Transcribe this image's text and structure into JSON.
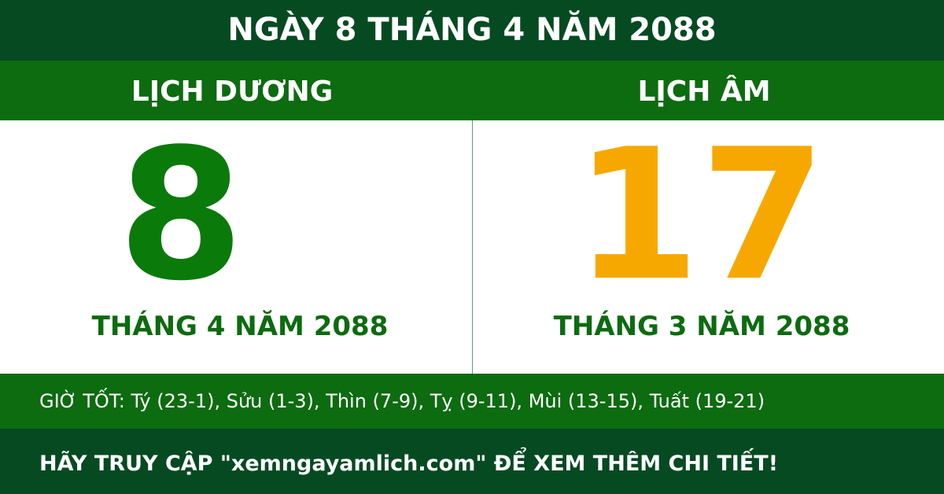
{
  "header": {
    "title": "NGÀY 8 THÁNG 4 NĂM 2088"
  },
  "solar": {
    "label": "LỊCH DƯƠNG",
    "day": "8",
    "month_year": "THÁNG 4 NĂM 2088"
  },
  "lunar": {
    "label": "LỊCH ÂM",
    "day": "17",
    "month_year": "THÁNG 3 NĂM 2088"
  },
  "good_hours": "GIỜ TỐT: Tý (23-1), Sửu (1-3), Thìn (7-9), Tỵ (9-11), Mùi (13-15), Tuất (19-21)",
  "footer": "HÃY TRUY CẬP \"xemngayamlich.com\" ĐỂ XEM THÊM CHI TIẾT!"
}
